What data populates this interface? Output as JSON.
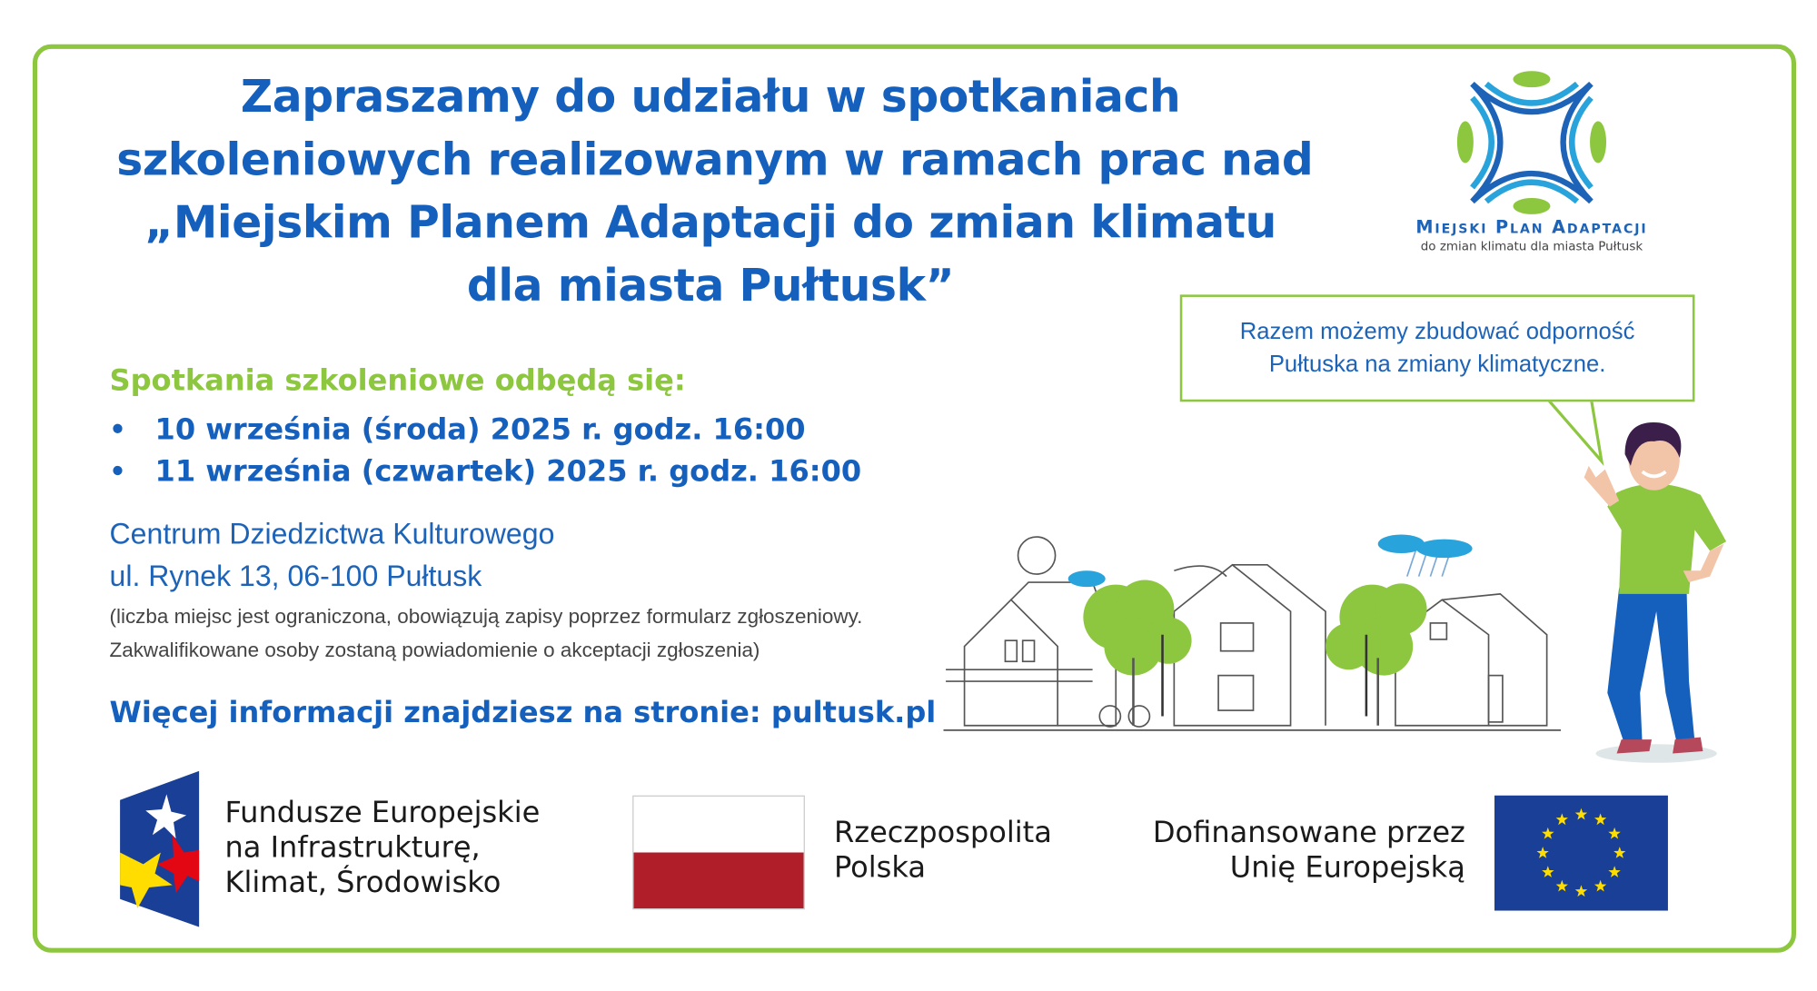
{
  "title": {
    "lines": [
      "Zapraszamy do udziału w spotkaniach",
      "szkoleniowych realizowanym w ramach prac nad",
      "„Miejskim Planem Adaptacji do zmian klimatu",
      "dla miasta Pułtusk”"
    ]
  },
  "logo": {
    "name": "Miejski Plan Adaptacji",
    "subtitle": "do zmian klimatu dla miasta Pułtusk"
  },
  "bubble": {
    "lines": [
      "Razem możemy zbudować odporność",
      "Pułtuska na zmiany klimatyczne."
    ]
  },
  "meetings": {
    "heading": "Spotkania szkoleniowe odbędą się:",
    "dates": [
      "10 września (środa) 2025 r. godz. 16:00",
      "11 września (czwartek) 2025 r. godz. 16:00"
    ]
  },
  "venue": {
    "name": "Centrum Dziedzictwa Kulturowego",
    "address": "ul. Rynek 13, 06-100 Pułtusk",
    "note_lines": [
      "(liczba miejsc jest ograniczona, obowiązują zapisy poprzez formularz zgłoszeniowy.",
      "Zakwalifikowane osoby zostaną powiadomienie o akceptacji zgłoszenia)"
    ]
  },
  "more_info": "Więcej informacji znajdziesz na stronie: pultusk.pl",
  "footer": {
    "fe": [
      "Fundusze Europejskie",
      "na Infrastrukturę,",
      "Klimat, Środowisko"
    ],
    "pl": [
      "Rzeczpospolita",
      "Polska"
    ],
    "eu": [
      "Dofinansowane przez",
      "Unię Europejską"
    ]
  },
  "colors": {
    "blue": "#1560bd",
    "green": "#8dc63f",
    "pl_red": "#b01e2a",
    "eu_blue": "#1a3f96",
    "eu_star": "#ffdd00"
  }
}
